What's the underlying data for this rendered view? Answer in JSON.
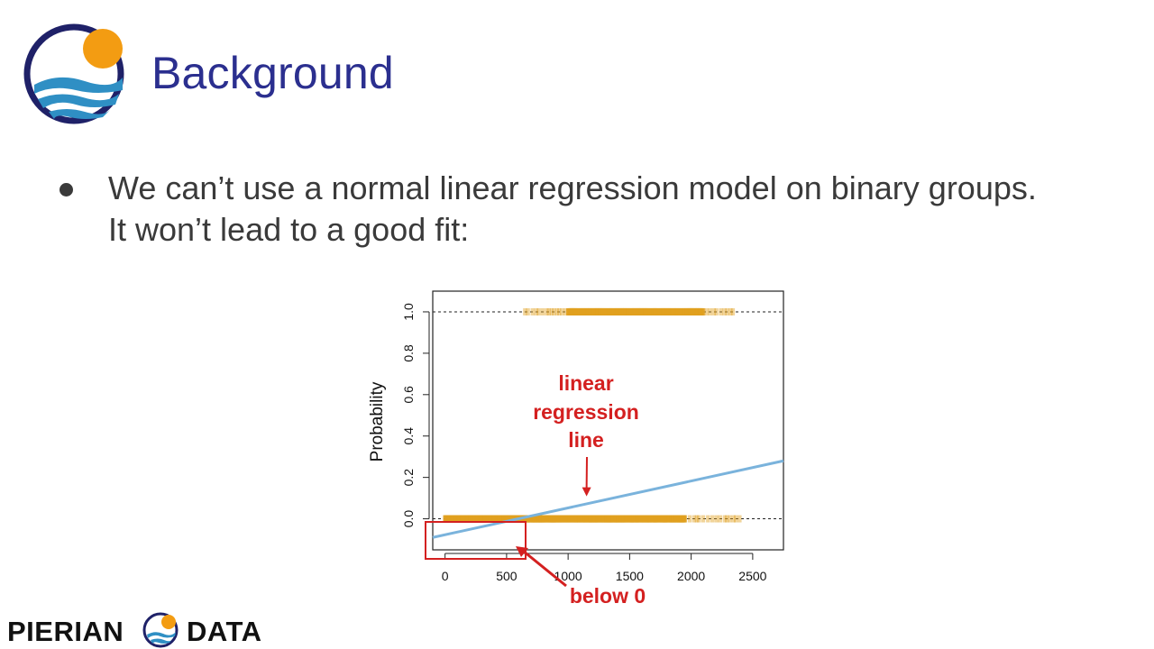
{
  "slide": {
    "title": "Background",
    "bullet": "We can’t use a normal linear regression model on binary groups. It won’t lead to a good fit:"
  },
  "footer": {
    "brand_left": "PIERIAN",
    "brand_right": "DATA"
  },
  "colors": {
    "title": "#2b2f8f",
    "logo_navy": "#1f2168",
    "logo_orange": "#f39c12",
    "logo_blue": "#2f8fc4",
    "points": "#e0a020",
    "regression_line": "#7ab3dc",
    "annotation": "#d42020"
  },
  "icons": [
    "pierian-logo-icon",
    "bullet-icon",
    "arrow-down-icon",
    "arrow-icon"
  ],
  "chart_data": {
    "type": "scatter",
    "title": "",
    "xlabel": "",
    "ylabel": "Probability",
    "xlim": [
      -100,
      2750
    ],
    "ylim": [
      -0.15,
      1.1
    ],
    "x_ticks": [
      "0",
      "500",
      "1000",
      "1500",
      "2000",
      "2500"
    ],
    "x_tick_values": [
      0,
      500,
      1000,
      1500,
      2000,
      2500
    ],
    "y_ticks": [
      "0.0",
      "0.2",
      "0.4",
      "0.6",
      "0.8",
      "1.0"
    ],
    "y_tick_values": [
      0,
      0.2,
      0.4,
      0.6,
      0.8,
      1.0
    ],
    "reference_lines": [
      0,
      1
    ],
    "grid": false,
    "series": [
      {
        "values": [
          {
            "x_range": [
              0,
              1950
            ],
            "y": 0,
            "density": "dense"
          },
          {
            "x_range": [
              1950,
              2400
            ],
            "y": 0,
            "density": "sparse"
          },
          {
            "x_range": [
              650,
              1000
            ],
            "y": 1,
            "density": "sparse"
          },
          {
            "x_range": [
              1000,
              2100
            ],
            "y": 1,
            "density": "dense"
          },
          {
            "x_range": [
              2100,
              2350
            ],
            "y": 1,
            "density": "sparse"
          }
        ]
      },
      {
        "type": "line",
        "points": [
          [
            -100,
            -0.09
          ],
          [
            2750,
            0.28
          ]
        ]
      }
    ],
    "annotations": [
      {
        "text": "linear regression line",
        "lines": [
          "linear",
          "regression",
          "line"
        ],
        "arrow_to": [
          1150,
          0.1
        ]
      },
      {
        "text": "below 0",
        "box": {
          "x": [
            -100,
            650
          ],
          "y": [
            -0.15,
            0.0
          ]
        },
        "arrow_from_box": true
      }
    ]
  }
}
